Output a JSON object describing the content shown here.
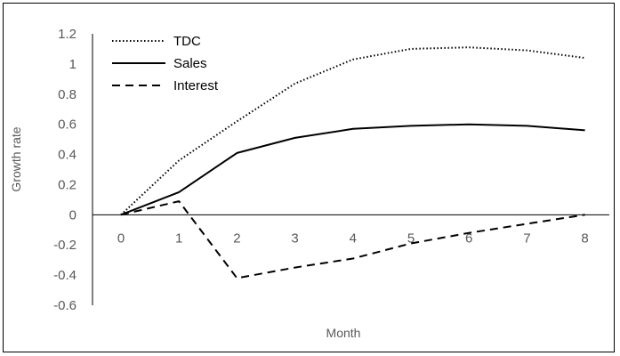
{
  "chart_data": {
    "type": "line",
    "xlabel": "Month",
    "ylabel": "Growth rate",
    "x": [
      0,
      1,
      2,
      3,
      4,
      5,
      6,
      7,
      8
    ],
    "x_tick_labels": [
      "0",
      "1",
      "2",
      "3",
      "4",
      "5",
      "6",
      "7",
      "8"
    ],
    "y_tick_labels": [
      "1.2",
      "1",
      "0.8",
      "0.6",
      "0.4",
      "0.2",
      "0",
      "-0.2",
      "-0.4",
      "-0.6"
    ],
    "ylim": [
      -0.6,
      1.2
    ],
    "grid": false,
    "legend_position": "top-left",
    "series": [
      {
        "name": "TDC",
        "style": "dotted",
        "color": "#000000",
        "values": [
          0,
          0.36,
          0.62,
          0.87,
          1.03,
          1.1,
          1.11,
          1.09,
          1.04
        ]
      },
      {
        "name": "Sales",
        "style": "solid",
        "color": "#000000",
        "values": [
          0,
          0.15,
          0.41,
          0.51,
          0.57,
          0.59,
          0.6,
          0.59,
          0.56
        ]
      },
      {
        "name": "Interest",
        "style": "dashed",
        "color": "#000000",
        "values": [
          0,
          0.09,
          -0.42,
          -0.35,
          -0.29,
          -0.19,
          -0.12,
          -0.06,
          0.0
        ]
      }
    ]
  }
}
